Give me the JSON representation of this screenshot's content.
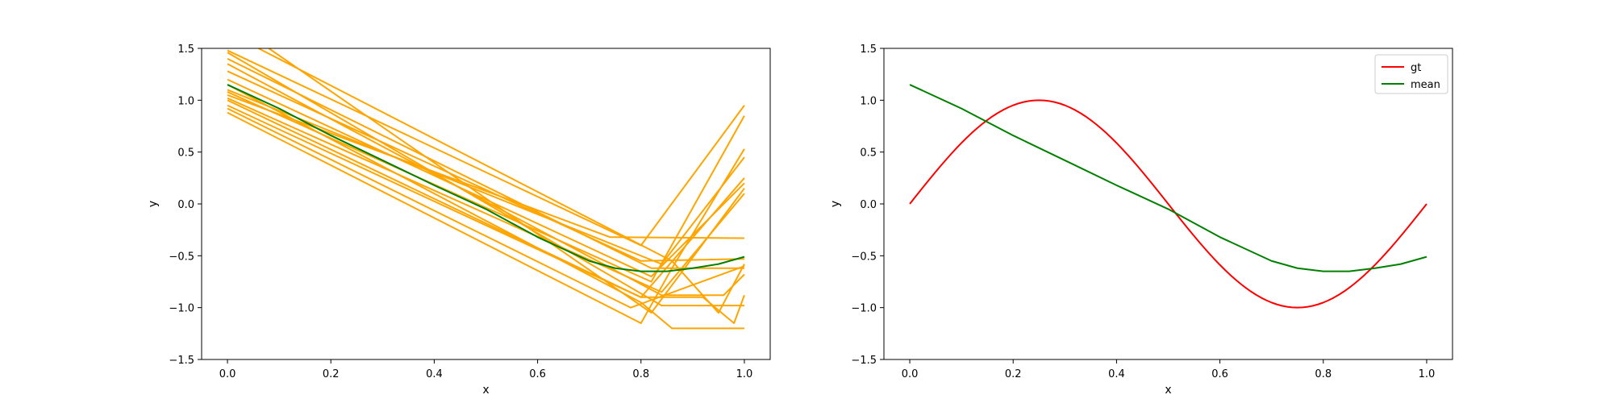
{
  "chart_data": [
    {
      "type": "line",
      "xlabel": "x",
      "ylabel": "y",
      "xlim": [
        -0.05,
        1.05
      ],
      "ylim": [
        -1.5,
        1.5
      ],
      "xticks": [
        "0.0",
        "0.2",
        "0.4",
        "0.6",
        "0.8",
        "1.0"
      ],
      "yticks": [
        "−1.5",
        "−1.0",
        "−0.5",
        "0.0",
        "0.5",
        "1.0",
        "1.5"
      ],
      "grid": false,
      "legend": null,
      "colors": {
        "samples": "#FFA500",
        "mean": "#008000"
      },
      "series": [
        {
          "x": [
            0,
            0.8,
            0.86,
            1.0
          ],
          "values": [
            0.88,
            -1.15,
            -0.62,
            0.53
          ]
        },
        {
          "x": [
            0,
            0.78,
            1.0
          ],
          "values": [
            0.92,
            -1.0,
            -0.6
          ]
        },
        {
          "x": [
            0,
            0.8,
            1.0
          ],
          "values": [
            0.95,
            -0.9,
            0.25
          ]
        },
        {
          "x": [
            0,
            0.74,
            1.0
          ],
          "values": [
            1.05,
            -0.32,
            -0.33
          ]
        },
        {
          "x": [
            0,
            0.84,
            1.0
          ],
          "values": [
            1.1,
            -0.58,
            0.45
          ]
        },
        {
          "x": [
            0,
            0.8,
            0.86,
            1.0
          ],
          "values": [
            1.15,
            -0.95,
            -1.2,
            -1.2
          ]
        },
        {
          "x": [
            0,
            0.82,
            1.0
          ],
          "values": [
            1.2,
            -0.7,
            0.2
          ]
        },
        {
          "x": [
            0,
            0.8,
            1.0
          ],
          "values": [
            1.28,
            -0.55,
            -0.53
          ]
        },
        {
          "x": [
            0,
            0.84,
            0.96,
            1.0
          ],
          "values": [
            1.35,
            -0.88,
            -0.88,
            -0.68
          ]
        },
        {
          "x": [
            0,
            0.82,
            1.0
          ],
          "values": [
            1.4,
            -0.62,
            -0.62
          ]
        },
        {
          "x": [
            0,
            0.84,
            1.0
          ],
          "values": [
            1.46,
            -0.98,
            -0.98
          ]
        },
        {
          "x": [
            0,
            0.8,
            1.0
          ],
          "values": [
            1.48,
            -0.4,
            0.95
          ]
        },
        {
          "x": [
            0.08,
            0.82,
            1.0
          ],
          "values": [
            1.5,
            -1.05,
            0.15
          ]
        },
        {
          "x": [
            0.06,
            0.86,
            0.95,
            1.0
          ],
          "values": [
            1.5,
            -0.55,
            -1.05,
            -0.58
          ]
        },
        {
          "x": [
            0,
            0.8,
            0.92,
            0.98,
            1.0
          ],
          "values": [
            1.0,
            -0.9,
            -0.9,
            -1.15,
            -0.88
          ]
        },
        {
          "x": [
            0,
            0.82,
            1.0
          ],
          "values": [
            1.08,
            -0.75,
            0.85
          ]
        },
        {
          "x": [
            0,
            0.84,
            1.0
          ],
          "values": [
            1.02,
            -0.85,
            0.1
          ]
        }
      ],
      "mean": {
        "x": [
          0,
          0.1,
          0.2,
          0.3,
          0.4,
          0.5,
          0.6,
          0.7,
          0.75,
          0.8,
          0.85,
          0.9,
          0.95,
          1.0
        ],
        "values": [
          1.15,
          0.92,
          0.66,
          0.42,
          0.18,
          -0.05,
          -0.32,
          -0.55,
          -0.62,
          -0.65,
          -0.65,
          -0.62,
          -0.58,
          -0.51
        ]
      }
    },
    {
      "type": "line",
      "xlabel": "x",
      "ylabel": "y",
      "xlim": [
        -0.05,
        1.05
      ],
      "ylim": [
        -1.5,
        1.5
      ],
      "xticks": [
        "0.0",
        "0.2",
        "0.4",
        "0.6",
        "0.8",
        "1.0"
      ],
      "yticks": [
        "−1.5",
        "−1.0",
        "−0.5",
        "0.0",
        "0.5",
        "1.0",
        "1.5"
      ],
      "grid": false,
      "legend": "top-right",
      "series": [
        {
          "name": "gt",
          "color": "#FF0000",
          "function": "sin(2πx)",
          "x_range": [
            0,
            1
          ]
        },
        {
          "name": "mean",
          "color": "#008000",
          "x": [
            0,
            0.1,
            0.2,
            0.3,
            0.4,
            0.5,
            0.6,
            0.7,
            0.75,
            0.8,
            0.85,
            0.9,
            0.95,
            1.0
          ],
          "values": [
            1.15,
            0.92,
            0.66,
            0.42,
            0.18,
            -0.05,
            -0.32,
            -0.55,
            -0.62,
            -0.65,
            -0.65,
            -0.62,
            -0.58,
            -0.51
          ]
        }
      ]
    }
  ]
}
